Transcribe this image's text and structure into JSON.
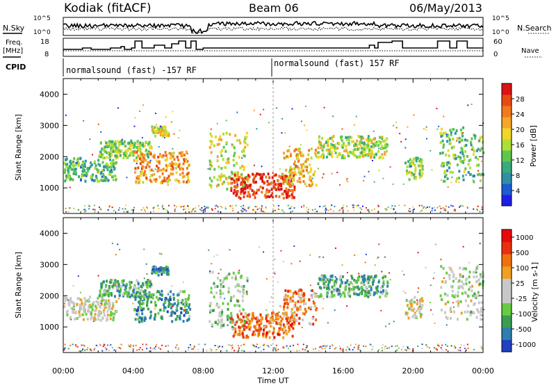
{
  "header": {
    "station": "Kodiak (fitACF)",
    "beam": "Beam 06",
    "date": "06/May/2013"
  },
  "top_panels": {
    "nsky_label": "N.Sky",
    "nsky_ticks": [
      "10^5",
      "10^0"
    ],
    "nsearch_label": "N.Search",
    "nsearch_ticks": [
      "10^5",
      "10^0"
    ],
    "freq_label_1": "Freq.",
    "freq_label_2": "[MHz]",
    "freq_ticks": [
      "18",
      "8"
    ],
    "nave_label": "Nave",
    "nave_ticks": [
      "60",
      "0"
    ],
    "cpid_label": "CPID",
    "cpid_segments": [
      {
        "label": "normalsound (fast) -157 RF",
        "start_hour": 0
      },
      {
        "label": "normalsound (fast) 157 RF",
        "start_hour": 12
      }
    ],
    "freq_steps_mhz": [
      [
        0,
        12
      ],
      [
        1.1,
        13
      ],
      [
        1.6,
        12
      ],
      [
        2.7,
        13
      ],
      [
        3.3,
        14
      ],
      [
        3.5,
        12
      ],
      [
        3.9,
        13
      ],
      [
        4.1,
        18
      ],
      [
        4.5,
        13
      ],
      [
        5.2,
        15
      ],
      [
        5.8,
        13
      ],
      [
        6.2,
        16
      ],
      [
        6.6,
        18
      ],
      [
        7,
        13
      ],
      [
        7.3,
        18
      ],
      [
        7.6,
        12
      ],
      [
        8,
        13
      ],
      [
        10,
        13
      ],
      [
        14,
        13
      ],
      [
        17.5,
        15
      ],
      [
        17.8,
        13
      ],
      [
        18,
        17
      ],
      [
        18.8,
        18
      ],
      [
        19.4,
        13
      ],
      [
        20.6,
        13
      ],
      [
        21.4,
        18
      ],
      [
        22.1,
        13
      ],
      [
        22.5,
        18
      ],
      [
        23.1,
        13
      ],
      [
        24,
        13
      ]
    ]
  },
  "x_axis": {
    "label": "Time UT",
    "ticks": [
      "00:00",
      "04:00",
      "08:00",
      "12:00",
      "16:00",
      "20:00",
      "00:00"
    ]
  },
  "chart_data": [
    {
      "type": "heatmap",
      "title": "",
      "xlabel": "Time UT",
      "ylabel": "Slant Range [km]",
      "xlim_hours": [
        0,
        24
      ],
      "ylim_km": [
        180,
        4500
      ],
      "yticks": [
        "1000",
        "2000",
        "3000",
        "4000"
      ],
      "colorbar": {
        "label": "Power [dB]",
        "ticks": [
          "4",
          "8",
          "12",
          "16",
          "20",
          "24",
          "28"
        ],
        "colors": [
          "#1e1ee8",
          "#1f5bd2",
          "#2f8fa7",
          "#3aa97e",
          "#5fc64d",
          "#aede37",
          "#f0d62a",
          "#f5a52a",
          "#f07a1d",
          "#e84a14",
          "#dc1414"
        ]
      },
      "echo_bands": [
        {
          "t0": 0,
          "t1": 3.0,
          "r0": 1250,
          "r1": 2000,
          "value": 0.35
        },
        {
          "t0": 2.0,
          "t1": 5.0,
          "r0": 2000,
          "r1": 2550,
          "value": 0.45
        },
        {
          "t0": 4.0,
          "t1": 7.2,
          "r0": 1200,
          "r1": 2200,
          "value": 0.7
        },
        {
          "t0": 5.0,
          "t1": 6.0,
          "r0": 2700,
          "r1": 3000,
          "value": 0.55
        },
        {
          "t0": 8.3,
          "t1": 10.5,
          "r0": 1000,
          "r1": 2800,
          "value": 0.55
        },
        {
          "t0": 9.5,
          "t1": 13.2,
          "r0": 700,
          "r1": 1500,
          "value": 0.9
        },
        {
          "t0": 12.5,
          "t1": 14.5,
          "r0": 1100,
          "r1": 2300,
          "value": 0.65
        },
        {
          "t0": 14.5,
          "t1": 18.5,
          "r0": 2000,
          "r1": 2700,
          "value": 0.5
        },
        {
          "t0": 19.5,
          "t1": 20.5,
          "r0": 1300,
          "r1": 2000,
          "value": 0.45
        },
        {
          "t0": 21.5,
          "t1": 24,
          "r0": 1200,
          "r1": 3000,
          "value": 0.4
        }
      ]
    },
    {
      "type": "heatmap",
      "title": "",
      "xlabel": "Time UT",
      "ylabel": "Slant Range [km]",
      "xlim_hours": [
        0,
        24
      ],
      "ylim_km": [
        180,
        4500
      ],
      "yticks": [
        "1000",
        "2000",
        "3000",
        "4000"
      ],
      "colorbar": {
        "label": "Velocity [m s-1]",
        "ticks": [
          "1000",
          "500",
          "100",
          "25",
          "-25",
          "-100",
          "-500",
          "-1000"
        ],
        "colors": [
          "#2040c0",
          "#2c7fb0",
          "#3a9e50",
          "#66cc44",
          "#c8c8c8",
          "#c8c8c8",
          "#f0a020",
          "#f07010",
          "#e83010",
          "#e80a0a"
        ]
      },
      "echo_bands": [
        {
          "t0": 0,
          "t1": 3.0,
          "r0": 1250,
          "r1": 2000,
          "value": 0.5
        },
        {
          "t0": 2.0,
          "t1": 5.0,
          "r0": 2000,
          "r1": 2550,
          "value": 0.3
        },
        {
          "t0": 4.0,
          "t1": 7.2,
          "r0": 1200,
          "r1": 2200,
          "value": 0.25
        },
        {
          "t0": 5.0,
          "t1": 6.0,
          "r0": 2700,
          "r1": 3000,
          "value": 0.2
        },
        {
          "t0": 8.3,
          "t1": 10.5,
          "r0": 1000,
          "r1": 2800,
          "value": 0.4
        },
        {
          "t0": 9.5,
          "t1": 13.2,
          "r0": 700,
          "r1": 1500,
          "value": 0.75
        },
        {
          "t0": 12.5,
          "t1": 14.5,
          "r0": 1100,
          "r1": 2300,
          "value": 0.7
        },
        {
          "t0": 14.5,
          "t1": 18.5,
          "r0": 2000,
          "r1": 2700,
          "value": 0.3
        },
        {
          "t0": 19.5,
          "t1": 20.5,
          "r0": 1300,
          "r1": 2000,
          "value": 0.5
        },
        {
          "t0": 21.5,
          "t1": 24,
          "r0": 1200,
          "r1": 3000,
          "value": 0.45
        }
      ]
    }
  ]
}
